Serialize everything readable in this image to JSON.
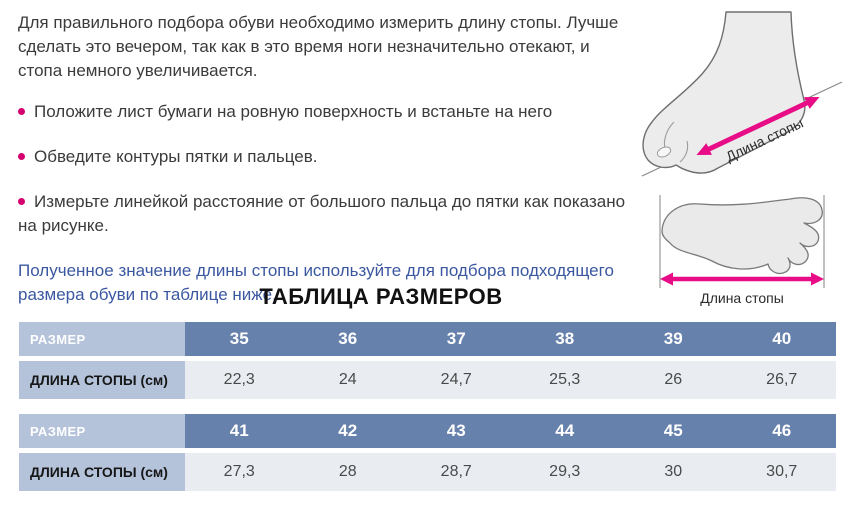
{
  "page": {
    "intro": "Для правильного подбора обуви необходимо измерить длину стопы. Лучше сделать это вечером, так как в это время ноги незначительно отекают, и стопа немного увеличивается.",
    "bullets": [
      "Положите лист бумаги на ровную поверхность и встаньте на него",
      "Обведите контуры пятки и пальцев.",
      "Измерьте линейкой расстояние от большого пальца до пятки как показано на рисунке."
    ],
    "note": "Полученное значение длины стопы используйте для подбора подходящего размера обуви по таблице ниже.",
    "figures": {
      "side_view_label": "Длина стопы",
      "top_view_label": "Длина стопы"
    },
    "table_title": "ТАБЛИЦА РАЗМЕРОВ",
    "tables": [
      {
        "row1_label": "РАЗМЕР",
        "row2_label": "ДЛИНА СТОПЫ (см)",
        "sizes": [
          "35",
          "36",
          "37",
          "38",
          "39",
          "40"
        ],
        "lengths_cm": [
          "22,3",
          "24",
          "24,7",
          "25,3",
          "26",
          "26,7"
        ]
      },
      {
        "row1_label": "РАЗМЕР",
        "row2_label": "ДЛИНА СТОПЫ (см)",
        "sizes": [
          "41",
          "42",
          "43",
          "44",
          "45",
          "46"
        ],
        "lengths_cm": [
          "27,3",
          "28",
          "28,7",
          "29,3",
          "30",
          "30,7"
        ]
      }
    ],
    "colors": {
      "accent_magenta": "#d4006e",
      "arrow_pink": "#e80c87",
      "note_blue": "#3a57a0",
      "table_header_blue": "#6781ad",
      "table_label_bg": "#b4c2da",
      "table_value_bg": "#e9edf2"
    }
  }
}
